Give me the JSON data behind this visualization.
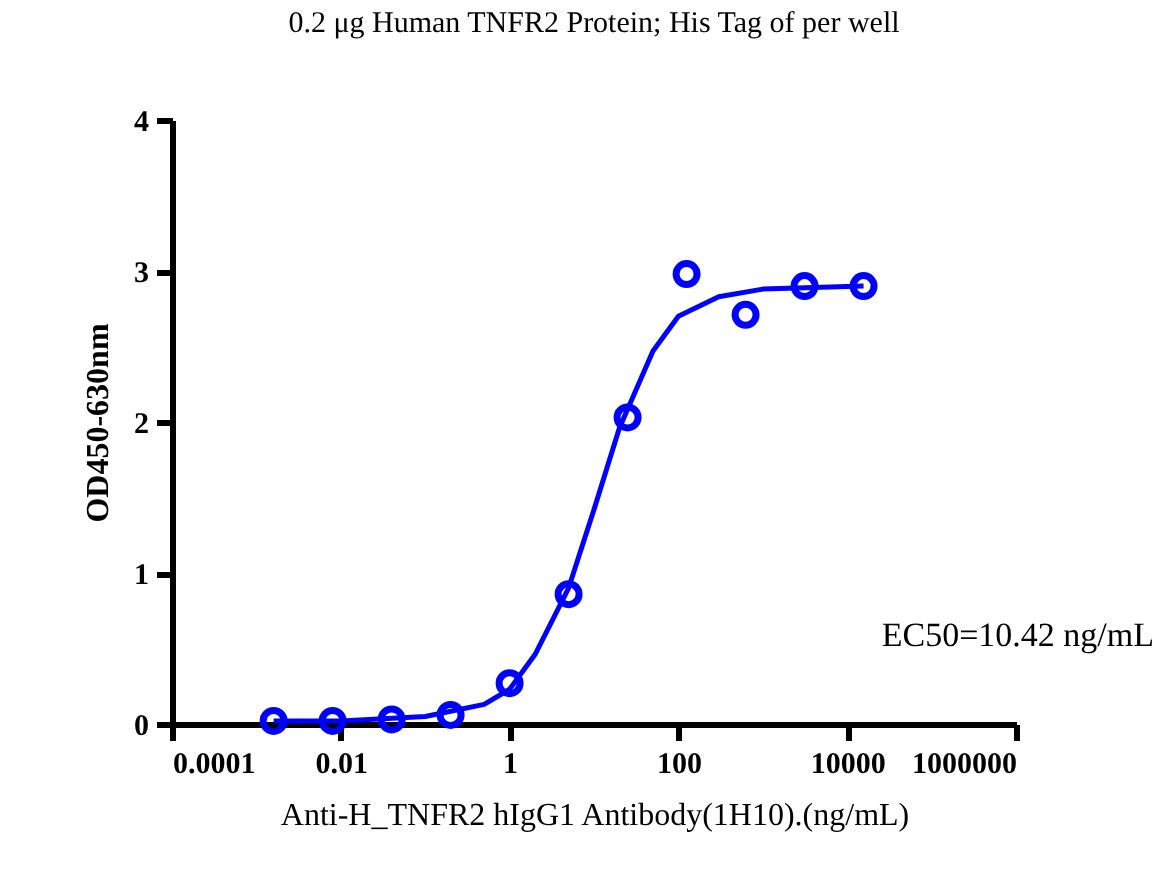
{
  "chart_data": {
    "type": "scatter",
    "title": "0.2 μg Human TNFR2 Protein; His Tag of per well",
    "xlabel": "Anti-H_TNFR2 hIgG1 Antibody(1H10).(ng/mL)",
    "ylabel": "OD450-630nm",
    "log": "x",
    "xlim": [
      0.0001,
      1000000
    ],
    "xticks": [
      0.0001,
      0.01,
      1,
      100,
      10000,
      1000000
    ],
    "ylim": [
      0,
      4
    ],
    "yticks": [
      0,
      1,
      2,
      3,
      4
    ],
    "grid": false,
    "annotations": [
      "EC50=10.42 ng/mL"
    ],
    "series": [
      {
        "marker": "circle",
        "color": "#0000ff",
        "x": [
          0.0016,
          0.008,
          0.04,
          0.2,
          1,
          5,
          25,
          125,
          625,
          3125,
          15625
        ],
        "values": [
          0.02,
          0.02,
          0.03,
          0.06,
          0.27,
          0.86,
          2.03,
          2.98,
          2.71,
          2.9,
          2.9
        ]
      },
      {
        "type": "line",
        "line_style": "solid",
        "color": "#0000ff",
        "x": [
          0.0016,
          0.01,
          0.1,
          0.5,
          1,
          2,
          5,
          10,
          20,
          50,
          100,
          300,
          1000,
          15625
        ],
        "values": [
          0.02,
          0.02,
          0.05,
          0.13,
          0.23,
          0.46,
          0.9,
          1.42,
          1.96,
          2.47,
          2.7,
          2.83,
          2.88,
          2.9
        ]
      }
    ]
  }
}
